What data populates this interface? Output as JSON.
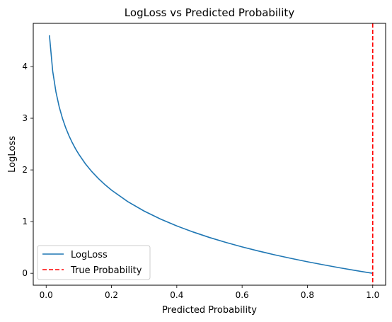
{
  "chart_data": {
    "type": "line",
    "title": "LogLoss vs Predicted Probability",
    "xlabel": "Predicted Probability",
    "ylabel": "LogLoss",
    "xlim": [
      -0.0395,
      1.0395
    ],
    "ylim": [
      -0.2303,
      4.8355
    ],
    "grid": false,
    "legend_position": "lower-left",
    "x_ticks": [
      0.0,
      0.2,
      0.4,
      0.6,
      0.8,
      1.0
    ],
    "x_tick_labels": [
      "0.0",
      "0.2",
      "0.4",
      "0.6",
      "0.8",
      "1.0"
    ],
    "y_ticks": [
      0,
      1,
      2,
      3,
      4
    ],
    "y_tick_labels": [
      "0",
      "1",
      "2",
      "3",
      "4"
    ],
    "series": [
      {
        "name": "LogLoss",
        "color": "#1f77b4",
        "style": "solid",
        "x": [
          0.01,
          0.02,
          0.03,
          0.04,
          0.05,
          0.06,
          0.07,
          0.08,
          0.09,
          0.1,
          0.12,
          0.14,
          0.16,
          0.18,
          0.2,
          0.25,
          0.3,
          0.35,
          0.4,
          0.45,
          0.5,
          0.55,
          0.6,
          0.65,
          0.7,
          0.75,
          0.8,
          0.85,
          0.9,
          0.95,
          1.0
        ],
        "y": [
          4.605,
          3.912,
          3.507,
          3.219,
          2.996,
          2.813,
          2.659,
          2.526,
          2.408,
          2.303,
          2.12,
          1.966,
          1.833,
          1.715,
          1.609,
          1.386,
          1.204,
          1.05,
          0.916,
          0.799,
          0.693,
          0.598,
          0.511,
          0.431,
          0.357,
          0.288,
          0.223,
          0.163,
          0.105,
          0.051,
          0.0
        ]
      }
    ],
    "vlines": [
      {
        "name": "True Probability",
        "x": 1.0,
        "color": "#ff0000",
        "style": "dashed"
      }
    ]
  }
}
